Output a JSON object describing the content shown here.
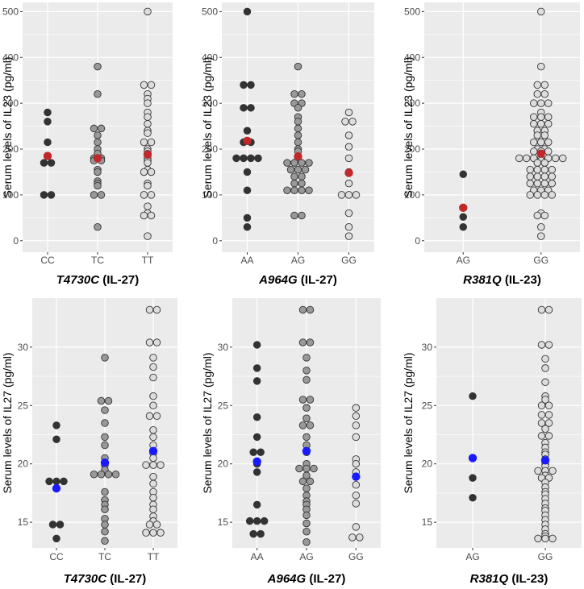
{
  "chart_data": [
    {
      "type": "dotplot",
      "ylabel": "Serum levels of IL23 (pg/ml)",
      "xlabel_gene": "T4730C",
      "xlabel_suffix": " (IL-27)",
      "ylim": [
        -25,
        520
      ],
      "yticks": [
        0,
        100,
        200,
        300,
        400,
        500
      ],
      "groups": [
        {
          "name": "CC",
          "fill": "#333333",
          "mean": 185,
          "values": [
            280,
            260,
            215,
            185,
            170,
            170,
            100,
            100
          ]
        },
        {
          "name": "TC",
          "fill": "#999999",
          "mean": 180,
          "values": [
            380,
            320,
            245,
            245,
            230,
            215,
            200,
            190,
            180,
            180,
            175,
            175,
            155,
            150,
            130,
            125,
            120,
            100,
            100,
            30
          ]
        },
        {
          "name": "TT",
          "fill": "#dddddd",
          "mean": 188,
          "values": [
            500,
            340,
            340,
            320,
            310,
            300,
            280,
            270,
            255,
            240,
            235,
            215,
            215,
            200,
            195,
            190,
            180,
            175,
            170,
            155,
            150,
            150,
            125,
            120,
            100,
            100,
            75,
            60,
            55,
            55,
            10
          ]
        }
      ]
    },
    {
      "type": "dotplot",
      "ylabel": "Serum levels of IL23 (pg/ml)",
      "xlabel_gene": "A964G",
      "xlabel_suffix": " (IL-27)",
      "ylim": [
        -25,
        520
      ],
      "yticks": [
        0,
        100,
        200,
        300,
        400,
        500
      ],
      "groups": [
        {
          "name": "AA",
          "fill": "#333333",
          "mean": 218,
          "values": [
            500,
            340,
            340,
            290,
            290,
            240,
            215,
            215,
            180,
            180,
            180,
            180,
            150,
            110,
            50,
            30
          ]
        },
        {
          "name": "AG",
          "fill": "#999999",
          "mean": 184,
          "values": [
            380,
            320,
            320,
            300,
            300,
            290,
            270,
            260,
            245,
            230,
            215,
            200,
            195,
            180,
            175,
            170,
            170,
            170,
            170,
            155,
            155,
            155,
            140,
            140,
            125,
            125,
            110,
            110,
            110,
            110,
            55,
            55
          ]
        },
        {
          "name": "GG",
          "fill": "#dddddd",
          "mean": 148,
          "values": [
            280,
            260,
            260,
            230,
            205,
            180,
            150,
            125,
            100,
            100,
            100,
            60,
            30,
            10
          ]
        }
      ]
    },
    {
      "type": "dotplot",
      "ylabel": "Serum levels of IL23 (pg/ml)",
      "xlabel_gene": "R381Q",
      "xlabel_suffix": " (IL-23)",
      "ylim": [
        -25,
        520
      ],
      "yticks": [
        0,
        100,
        200,
        300,
        400,
        500
      ],
      "groups": [
        {
          "name": "AG",
          "fill": "#333333",
          "mean": 72,
          "values": [
            145,
            52,
            30
          ]
        },
        {
          "name": "GG",
          "fill": "#dddddd",
          "mean": 190,
          "values": [
            500,
            380,
            340,
            340,
            320,
            320,
            300,
            300,
            300,
            280,
            270,
            270,
            270,
            255,
            255,
            255,
            240,
            240,
            230,
            230,
            215,
            215,
            215,
            200,
            200,
            195,
            195,
            195,
            180,
            180,
            180,
            180,
            180,
            180,
            180,
            175,
            170,
            170,
            155,
            155,
            155,
            155,
            140,
            140,
            140,
            140,
            125,
            125,
            125,
            125,
            110,
            110,
            110,
            100,
            100,
            100,
            100,
            60,
            55,
            55,
            30,
            10
          ]
        }
      ]
    },
    {
      "type": "dotplot",
      "ylabel": "Serum levels of IL27 (pg/ml)",
      "xlabel_gene": "T4730C",
      "xlabel_suffix": " (IL-27)",
      "ylim": [
        12.8,
        34.2
      ],
      "yticks": [
        15,
        20,
        25,
        30
      ],
      "groups": [
        {
          "name": "CC",
          "fill": "#333333",
          "mean": 17.9,
          "values": [
            23.3,
            22.1,
            18.5,
            18.5,
            18.5,
            14.8,
            14.8,
            13.6
          ]
        },
        {
          "name": "TC",
          "fill": "#999999",
          "mean": 20.1,
          "values": [
            29.1,
            25.4,
            25.4,
            24.6,
            23.5,
            22.3,
            21.6,
            20.5,
            19.9,
            19.5,
            19.1,
            19.1,
            19.1,
            19.1,
            17.6,
            16.9,
            16.5,
            16.1,
            15.3,
            14.8,
            14.2,
            13.4
          ]
        },
        {
          "name": "TT",
          "fill": "#dddddd",
          "mean": 21.1,
          "values": [
            33.2,
            33.2,
            30.4,
            30.4,
            29.1,
            28.3,
            27.4,
            25.8,
            25.0,
            24.1,
            24.1,
            22.9,
            22.3,
            21.6,
            20.9,
            20.5,
            19.9,
            19.9,
            19.9,
            18.9,
            18.3,
            17.6,
            17.1,
            16.5,
            16.1,
            15.5,
            15.1,
            14.8,
            14.8,
            14.1,
            14.1,
            14.1
          ]
        }
      ]
    },
    {
      "type": "dotplot",
      "ylabel": "Serum levels of IL27 (pg/ml)",
      "xlabel_gene": "A964G",
      "xlabel_suffix": " (IL-27)",
      "ylim": [
        12.8,
        34.2
      ],
      "yticks": [
        15,
        20,
        25,
        30
      ],
      "groups": [
        {
          "name": "AA",
          "fill": "#333333",
          "mean": 20.2,
          "values": [
            30.2,
            28.2,
            27.1,
            24.0,
            22.3,
            21.0,
            21.0,
            20.0,
            19.3,
            16.5,
            15.1,
            15.1,
            15.1,
            14.0,
            14.0
          ]
        },
        {
          "name": "AG",
          "fill": "#999999",
          "mean": 21.1,
          "values": [
            33.2,
            33.2,
            30.4,
            30.4,
            29.1,
            28.0,
            27.2,
            25.5,
            25.5,
            24.8,
            23.9,
            23.3,
            23.3,
            22.3,
            21.6,
            21.0,
            20.0,
            19.6,
            19.6,
            19.6,
            19.0,
            18.5,
            18.5,
            17.9,
            17.3,
            16.8,
            16.5,
            16.1,
            15.6,
            14.9,
            14.2,
            13.3
          ]
        },
        {
          "name": "GG",
          "fill": "#dddddd",
          "mean": 18.9,
          "values": [
            24.8,
            24.1,
            23.3,
            22.3,
            20.4,
            20.0,
            19.3,
            18.9,
            18.2,
            17.3,
            16.6,
            14.6,
            13.7,
            13.7
          ]
        }
      ]
    },
    {
      "type": "dotplot",
      "ylabel": "Serum levels of IL27 (pg/ml)",
      "xlabel_gene": "R381Q",
      "xlabel_suffix": " (IL-23)",
      "ylim": [
        12.8,
        34.2
      ],
      "yticks": [
        15,
        20,
        25,
        30
      ],
      "groups": [
        {
          "name": "AG",
          "fill": "#333333",
          "mean": 20.5,
          "values": [
            25.8,
            18.8,
            17.1
          ]
        },
        {
          "name": "GG",
          "fill": "#dddddd",
          "mean": 20.3,
          "values": [
            33.2,
            33.2,
            30.2,
            30.2,
            29.0,
            28.2,
            27.0,
            25.8,
            25.5,
            25.0,
            25.0,
            24.2,
            24.2,
            23.5,
            23.5,
            23.0,
            22.4,
            22.4,
            21.8,
            21.4,
            21.0,
            20.8,
            20.4,
            20.0,
            19.8,
            19.4,
            19.4,
            19.4,
            19.0,
            18.8,
            18.8,
            18.4,
            18.0,
            17.6,
            17.4,
            17.0,
            16.6,
            16.2,
            16.0,
            15.6,
            15.2,
            14.8,
            14.4,
            14.0,
            13.8,
            13.6,
            13.6,
            13.6
          ]
        }
      ]
    }
  ],
  "colors": {
    "panel_bg": "#ebebeb",
    "grid": "#ffffff",
    "mean_top": "#c0282a",
    "mean_bottom": "#1a1aff",
    "point_stroke": "#333333"
  }
}
